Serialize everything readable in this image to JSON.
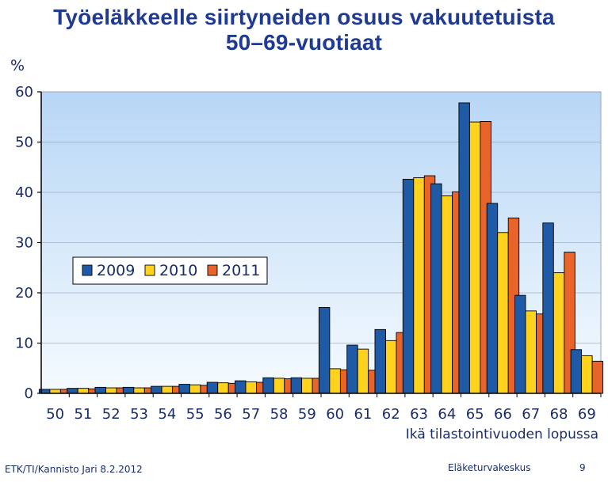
{
  "slide": {
    "title_line1": "Työeläkkeelle siirtyneiden osuus vakuutetuista",
    "title_line2": "50–69-vuotiaat",
    "footer_left": "ETK/TI/Kannisto Jari 8.2.2012",
    "footer_org": "Eläketurvakeskus",
    "page_number": "9"
  },
  "chart_data": {
    "type": "bar",
    "unit_label": "%",
    "xlabel": "Ikä tilastointivuoden lopussa",
    "categories": [
      "50",
      "51",
      "52",
      "53",
      "54",
      "55",
      "56",
      "57",
      "58",
      "59",
      "60",
      "61",
      "62",
      "63",
      "64",
      "65",
      "66",
      "67",
      "68",
      "69"
    ],
    "yticks": [
      "0",
      "10",
      "20",
      "30",
      "40",
      "50",
      "60"
    ],
    "ylim": [
      0,
      60
    ],
    "legend_position": "left-middle",
    "series": [
      {
        "name": "2009",
        "color": "#1f5aa6",
        "values": [
          0.8,
          1.0,
          1.2,
          1.2,
          1.4,
          1.8,
          2.2,
          2.5,
          3.1,
          3.1,
          17.1,
          9.6,
          12.7,
          42.6,
          41.7,
          57.8,
          37.8,
          19.5,
          33.9,
          8.7
        ]
      },
      {
        "name": "2010",
        "color": "#ffd21e",
        "values": [
          0.8,
          1.0,
          1.1,
          1.1,
          1.4,
          1.7,
          2.1,
          2.3,
          3.0,
          3.0,
          4.9,
          8.8,
          10.5,
          42.9,
          39.3,
          54.0,
          32.0,
          16.4,
          24.0,
          7.5
        ]
      },
      {
        "name": "2011",
        "color": "#e8642a",
        "values": [
          0.8,
          0.9,
          1.1,
          1.1,
          1.4,
          1.6,
          2.0,
          2.2,
          2.9,
          3.0,
          4.7,
          4.6,
          12.1,
          43.3,
          40.1,
          54.1,
          34.9,
          15.8,
          28.1,
          6.4
        ]
      }
    ]
  }
}
